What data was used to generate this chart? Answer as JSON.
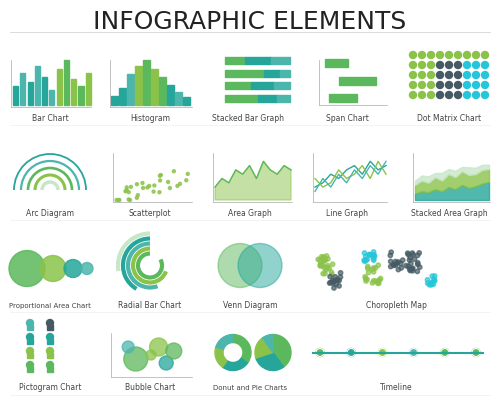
{
  "title": "INFOGRAPHIC ELEMENTS",
  "title_fontsize": 18,
  "bg_color": "#ffffff",
  "green1": "#5cb85c",
  "green2": "#8bc34a",
  "teal1": "#26a69a",
  "teal2": "#4db6ac",
  "dark": "#37474f",
  "light_green": "#c8e6c9",
  "mid_green": "#66bb6a",
  "dot_dark": "#455a64",
  "dot_teal": "#26c6da",
  "dot_green": "#8bc34a",
  "chart_labels": [
    "Bar Chart",
    "Histogram",
    "Stacked Bar Graph",
    "Span Chart",
    "Dot Matrix Chart",
    "Arc Diagram",
    "Scatterplot",
    "Area Graph",
    "Line Graph",
    "Stacked Area Graph",
    "Proportional Area Chart",
    "Radial Bar Chart",
    "Venn Diagram",
    "Choropleth Map",
    "Pictogram Chart",
    "Bubble Chart",
    "Donut and Pie Charts",
    "Timeline"
  ]
}
